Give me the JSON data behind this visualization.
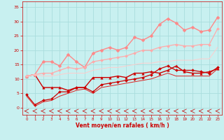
{
  "xlabel": "Vent moyen/en rafales ( km/h )",
  "bg_color": "#c8f0f0",
  "grid_color": "#aadddd",
  "x_values": [
    0,
    1,
    2,
    3,
    4,
    5,
    6,
    7,
    8,
    9,
    10,
    11,
    12,
    13,
    14,
    15,
    16,
    17,
    18,
    19,
    20,
    21,
    22,
    23
  ],
  "series": [
    {
      "y": [
        11,
        11.5,
        7,
        7,
        7,
        6,
        7,
        7,
        10.5,
        10.5,
        10.5,
        11,
        10.5,
        12,
        12,
        12.5,
        12,
        13,
        14.5,
        12.5,
        12,
        12,
        12.5,
        13.5
      ],
      "color": "#cc0000",
      "marker": "^",
      "markersize": 2.5,
      "linewidth": 1.0,
      "alpha": 1.0
    },
    {
      "y": [
        4.5,
        1,
        2.5,
        3,
        5.5,
        5.5,
        7,
        7,
        5.5,
        8,
        8.5,
        9,
        9.5,
        10,
        10.5,
        11.5,
        13.5,
        14.5,
        13,
        13,
        13,
        12.5,
        12,
        14
      ],
      "color": "#cc0000",
      "marker": "D",
      "markersize": 2.0,
      "linewidth": 0.9,
      "alpha": 1.0
    },
    {
      "y": [
        4,
        0.5,
        2,
        2.5,
        4,
        5,
        6,
        6.5,
        5,
        7,
        7.5,
        8,
        8.5,
        9,
        9.5,
        10,
        11,
        12,
        11,
        11,
        11,
        11,
        11,
        13.5
      ],
      "color": "#dd2222",
      "marker": null,
      "markersize": 0,
      "linewidth": 0.7,
      "alpha": 1.0
    },
    {
      "y": [
        11,
        11.5,
        16,
        16,
        14.5,
        18.5,
        16,
        14,
        19,
        20,
        21,
        20,
        21,
        24.5,
        23.5,
        25,
        29,
        31,
        29.5,
        27,
        28,
        26.5,
        27,
        31.5
      ],
      "color": "#ff8888",
      "marker": "D",
      "markersize": 2.5,
      "linewidth": 1.0,
      "alpha": 1.0
    },
    {
      "y": [
        11,
        11.5,
        12,
        12,
        13,
        14,
        13.5,
        14,
        16,
        16.5,
        17,
        17.5,
        18,
        19,
        20,
        20,
        21,
        21.5,
        22,
        21.5,
        21.5,
        22,
        22,
        27.5
      ],
      "color": "#ffaaaa",
      "marker": "D",
      "markersize": 2.0,
      "linewidth": 0.9,
      "alpha": 1.0
    },
    {
      "y": [
        11,
        11.5,
        11,
        11,
        11.5,
        12,
        12,
        12,
        13,
        13.5,
        14,
        14,
        14.5,
        15,
        15.5,
        15.5,
        16,
        16,
        16.5,
        16.5,
        16.5,
        17,
        17,
        21
      ],
      "color": "#ffcccc",
      "marker": null,
      "markersize": 0,
      "linewidth": 0.7,
      "alpha": 1.0
    }
  ],
  "arrow_color": "#cc0000",
  "ylim": [
    -2.5,
    37
  ],
  "xlim": [
    -0.5,
    23.5
  ],
  "yticks": [
    0,
    5,
    10,
    15,
    20,
    25,
    30,
    35
  ],
  "xticks": [
    0,
    1,
    2,
    3,
    4,
    5,
    6,
    7,
    8,
    9,
    10,
    11,
    12,
    13,
    14,
    15,
    16,
    17,
    18,
    19,
    20,
    21,
    22,
    23
  ]
}
